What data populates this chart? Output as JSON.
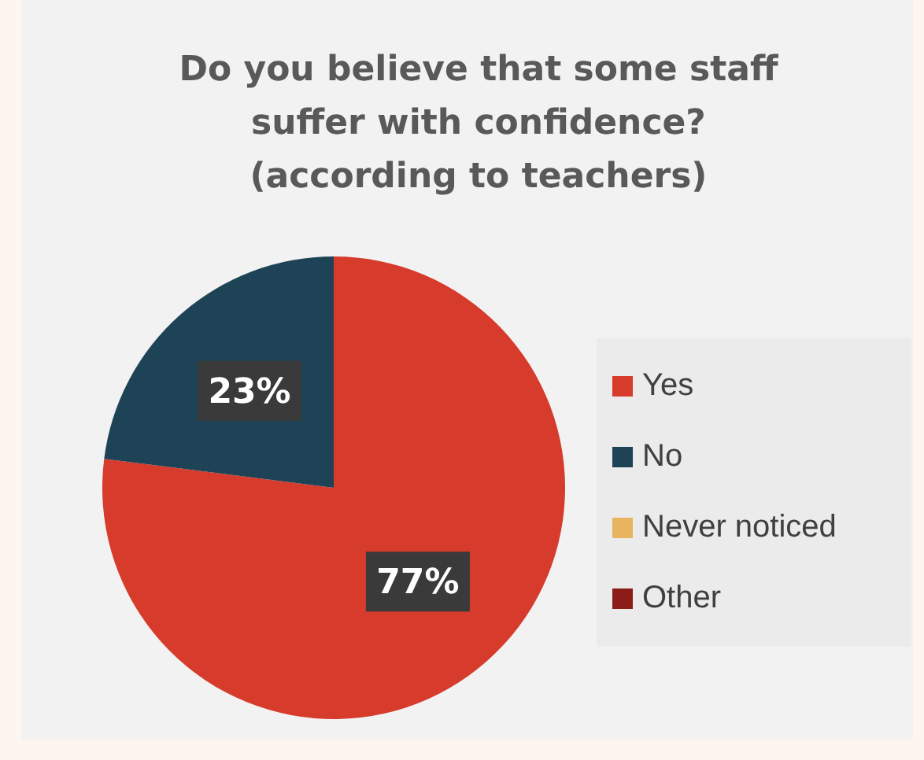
{
  "chart_data": {
    "type": "pie",
    "title": "Do you believe that some staff suffer with confidence? (according to teachers)",
    "categories": [
      "Yes",
      "No",
      "Never noticed",
      "Other"
    ],
    "values": [
      77,
      23,
      0,
      0
    ],
    "colors": [
      "#d63b2c",
      "#1f4356",
      "#e8b45f",
      "#8c1c17"
    ],
    "value_labels": [
      "77%",
      "23%",
      null,
      null
    ],
    "legend": "right"
  }
}
